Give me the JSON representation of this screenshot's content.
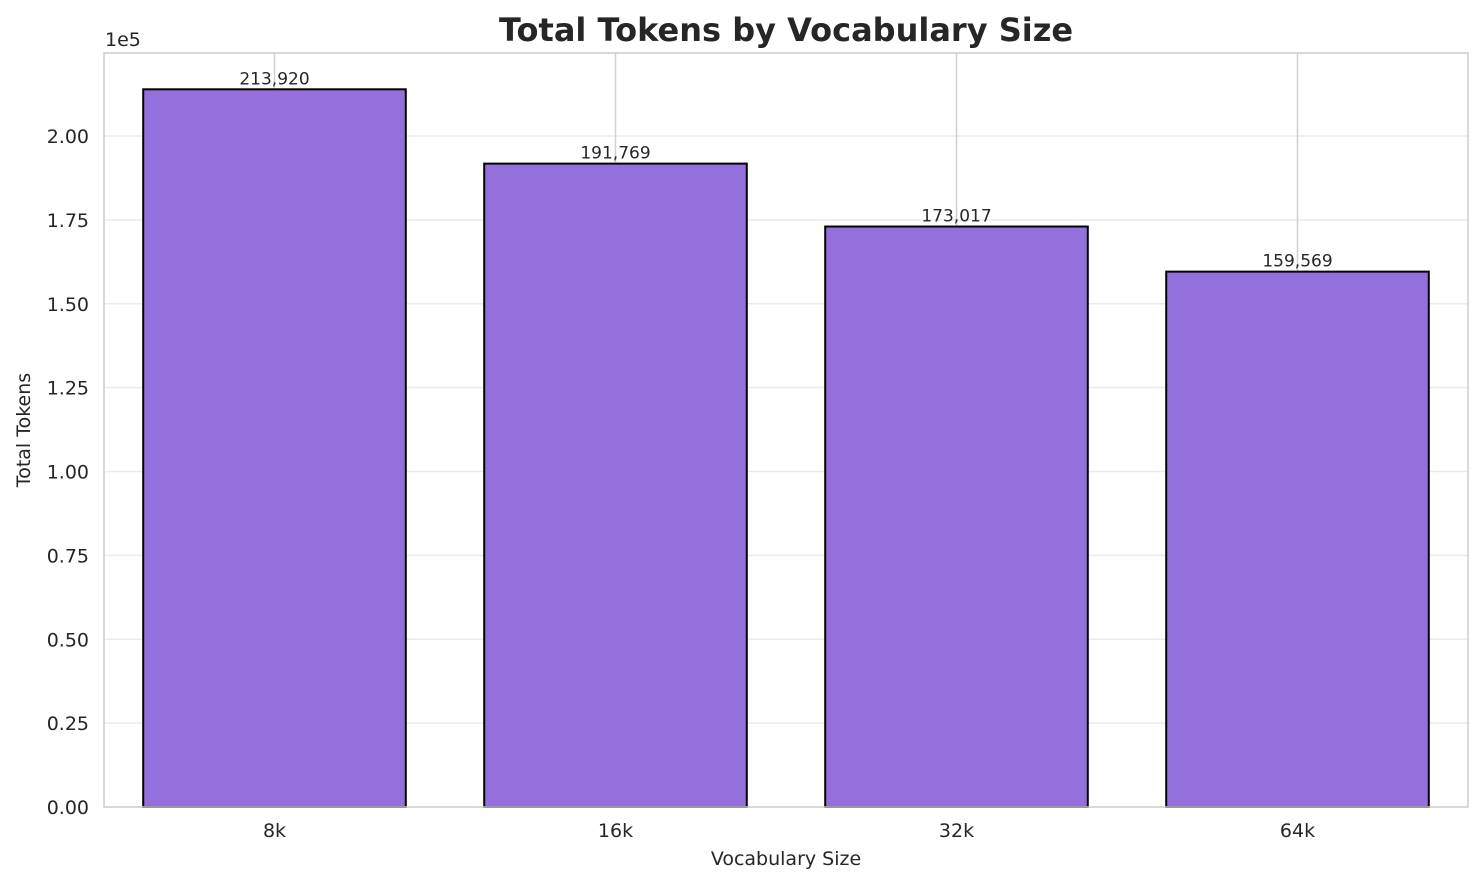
{
  "chart_data": {
    "type": "bar",
    "title": "Total Tokens by Vocabulary Size",
    "xlabel": "Vocabulary Size",
    "ylabel": "Total Tokens",
    "y_offset_label": "1e5",
    "categories": [
      "8k",
      "16k",
      "32k",
      "64k"
    ],
    "values": [
      213920,
      191769,
      173017,
      159569
    ],
    "value_labels": [
      "213,920",
      "191,769",
      "173,017",
      "159,569"
    ],
    "ylim": [
      0,
      224600
    ],
    "yticks": [
      0,
      25000,
      50000,
      75000,
      100000,
      125000,
      150000,
      175000,
      200000
    ],
    "ytick_labels": [
      "0.00",
      "0.25",
      "0.50",
      "0.75",
      "1.00",
      "1.25",
      "1.50",
      "1.75",
      "2.00"
    ],
    "grid": true,
    "legend": null,
    "colors": {
      "bar": "#9370db",
      "bar_edge": "#000000",
      "grid": "#ebebeb",
      "spine": "#cccccc"
    }
  }
}
